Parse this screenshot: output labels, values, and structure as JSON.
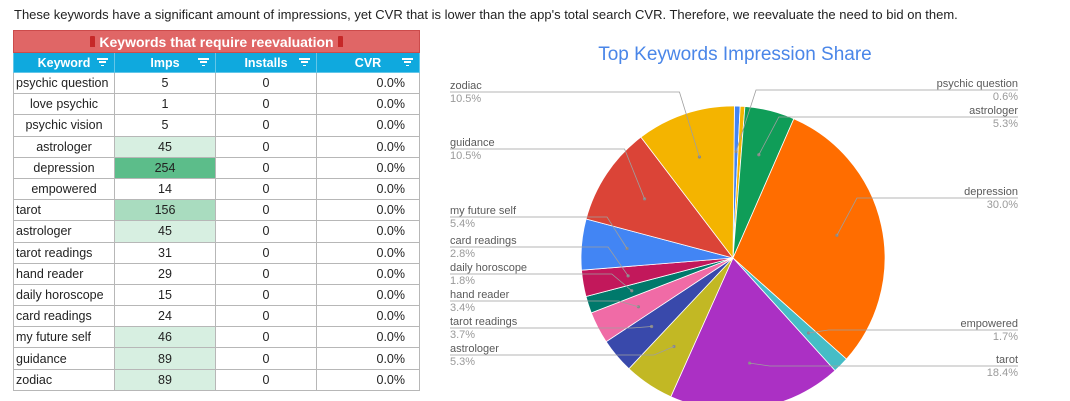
{
  "intro": "These keywords have a significant amount of impressions, yet CVR that is lower than the app's total search CVR. Therefore, we reevaluate the need to bid on them.",
  "table": {
    "title": "Keywords that require reevaluation",
    "headers": [
      "Keyword",
      "Imps",
      "Installs",
      "CVR"
    ],
    "rows": [
      {
        "keyword": "psychic question",
        "imps": "5",
        "installs": "0",
        "cvr": "0.0%",
        "shade": "",
        "align": "left"
      },
      {
        "keyword": "love psychic",
        "imps": "1",
        "installs": "0",
        "cvr": "0.0%",
        "shade": "",
        "align": "center"
      },
      {
        "keyword": "psychic vision",
        "imps": "5",
        "installs": "0",
        "cvr": "0.0%",
        "shade": "",
        "align": "center"
      },
      {
        "keyword": "astrologer",
        "imps": "45",
        "installs": "0",
        "cvr": "0.0%",
        "shade": "lt",
        "align": "center"
      },
      {
        "keyword": "depression",
        "imps": "254",
        "installs": "0",
        "cvr": "0.0%",
        "shade": "dk",
        "align": "center"
      },
      {
        "keyword": "empowered",
        "imps": "14",
        "installs": "0",
        "cvr": "0.0%",
        "shade": "",
        "align": "center"
      },
      {
        "keyword": "tarot",
        "imps": "156",
        "installs": "0",
        "cvr": "0.0%",
        "shade": "mid",
        "align": "left"
      },
      {
        "keyword": "astrologer",
        "imps": "45",
        "installs": "0",
        "cvr": "0.0%",
        "shade": "lt",
        "align": "left"
      },
      {
        "keyword": "tarot readings",
        "imps": "31",
        "installs": "0",
        "cvr": "0.0%",
        "shade": "",
        "align": "left"
      },
      {
        "keyword": "hand reader",
        "imps": "29",
        "installs": "0",
        "cvr": "0.0%",
        "shade": "",
        "align": "left"
      },
      {
        "keyword": "daily horoscope",
        "imps": "15",
        "installs": "0",
        "cvr": "0.0%",
        "shade": "",
        "align": "left"
      },
      {
        "keyword": "card readings",
        "imps": "24",
        "installs": "0",
        "cvr": "0.0%",
        "shade": "",
        "align": "left"
      },
      {
        "keyword": "my future self",
        "imps": "46",
        "installs": "0",
        "cvr": "0.0%",
        "shade": "lt",
        "align": "left"
      },
      {
        "keyword": "guidance",
        "imps": "89",
        "installs": "0",
        "cvr": "0.0%",
        "shade": "lt",
        "align": "left"
      },
      {
        "keyword": "zodiac",
        "imps": "89",
        "installs": "0",
        "cvr": "0.0%",
        "shade": "lt",
        "align": "left"
      }
    ]
  },
  "chart_data": {
    "type": "pie",
    "title": "Top Keywords Impression Share",
    "slices": [
      {
        "label": "psychic question",
        "value": 0.6,
        "pct": "0.6%",
        "color": "#4285f4"
      },
      {
        "label": "",
        "value": 0.5,
        "pct": "",
        "color": "#f4b400"
      },
      {
        "label": "astrologer",
        "value": 5.3,
        "pct": "5.3%",
        "color": "#0f9d58"
      },
      {
        "label": "depression",
        "value": 30.0,
        "pct": "30.0%",
        "color": "#ff6d00"
      },
      {
        "label": "empowered",
        "value": 1.7,
        "pct": "1.7%",
        "color": "#46bdc6"
      },
      {
        "label": "tarot",
        "value": 18.4,
        "pct": "18.4%",
        "color": "#ab30c4"
      },
      {
        "label": "astrologer",
        "value": 5.3,
        "pct": "5.3%",
        "color": "#c2b824"
      },
      {
        "label": "tarot readings",
        "value": 3.7,
        "pct": "3.7%",
        "color": "#3949ab"
      },
      {
        "label": "hand reader",
        "value": 3.4,
        "pct": "3.4%",
        "color": "#f06ba6"
      },
      {
        "label": "daily horoscope",
        "value": 1.8,
        "pct": "1.8%",
        "color": "#00796b"
      },
      {
        "label": "card readings",
        "value": 2.8,
        "pct": "2.8%",
        "color": "#c2185b"
      },
      {
        "label": "my future self",
        "value": 5.4,
        "pct": "5.4%",
        "color": "#4285f4"
      },
      {
        "label": "guidance",
        "value": 10.5,
        "pct": "10.5%",
        "color": "#db4437"
      },
      {
        "label": "zodiac",
        "value": 10.5,
        "pct": "10.5%",
        "color": "#f4b400"
      }
    ]
  }
}
